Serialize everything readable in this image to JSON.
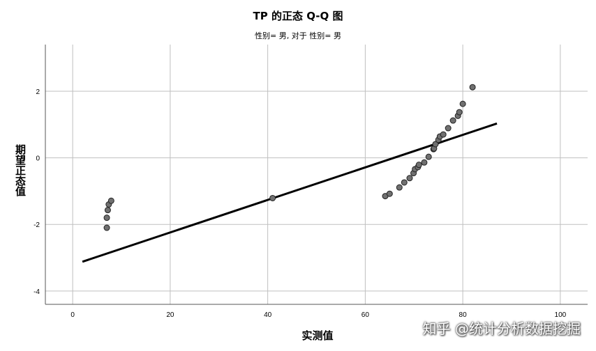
{
  "title": "TP 的正态 Q-Q 图",
  "subtitle": "性别= 男, 对于 性别= 男",
  "watermark": "知乎 @统计分析数据挖掘",
  "chart_data": {
    "type": "scatter",
    "title": "TP 的正态 Q-Q 图",
    "subtitle": "性别= 男, 对于 性别= 男",
    "xlabel": "实测值",
    "ylabel": "期望正态值",
    "xlim": [
      -5.6,
      105.6
    ],
    "ylim": [
      -4.4,
      3.4
    ],
    "xticks": [
      0,
      20,
      40,
      60,
      80,
      100
    ],
    "yticks": [
      -4,
      -2,
      0,
      2
    ],
    "grid": true,
    "points": [
      {
        "x": 7.0,
        "y": -2.1
      },
      {
        "x": 7.0,
        "y": -1.8
      },
      {
        "x": 7.2,
        "y": -1.57
      },
      {
        "x": 7.4,
        "y": -1.4
      },
      {
        "x": 7.9,
        "y": -1.29
      },
      {
        "x": 41.0,
        "y": -1.21
      },
      {
        "x": 64.1,
        "y": -1.15
      },
      {
        "x": 65.0,
        "y": -1.08
      },
      {
        "x": 67.0,
        "y": -0.89
      },
      {
        "x": 68.0,
        "y": -0.74
      },
      {
        "x": 69.1,
        "y": -0.61
      },
      {
        "x": 69.9,
        "y": -0.46
      },
      {
        "x": 70.2,
        "y": -0.34
      },
      {
        "x": 70.8,
        "y": -0.28
      },
      {
        "x": 71.0,
        "y": -0.21
      },
      {
        "x": 72.1,
        "y": -0.14
      },
      {
        "x": 73.0,
        "y": 0.03
      },
      {
        "x": 74.0,
        "y": 0.26
      },
      {
        "x": 74.1,
        "y": 0.28
      },
      {
        "x": 74.4,
        "y": 0.41
      },
      {
        "x": 75.0,
        "y": 0.54
      },
      {
        "x": 75.3,
        "y": 0.64
      },
      {
        "x": 76.0,
        "y": 0.7
      },
      {
        "x": 77.0,
        "y": 0.89
      },
      {
        "x": 78.0,
        "y": 1.12
      },
      {
        "x": 79.0,
        "y": 1.26
      },
      {
        "x": 79.3,
        "y": 1.37
      },
      {
        "x": 80.0,
        "y": 1.62
      },
      {
        "x": 82.0,
        "y": 2.12
      }
    ],
    "reference_line": {
      "x": [
        2,
        87
      ],
      "y": [
        -3.12,
        1.03
      ]
    }
  }
}
